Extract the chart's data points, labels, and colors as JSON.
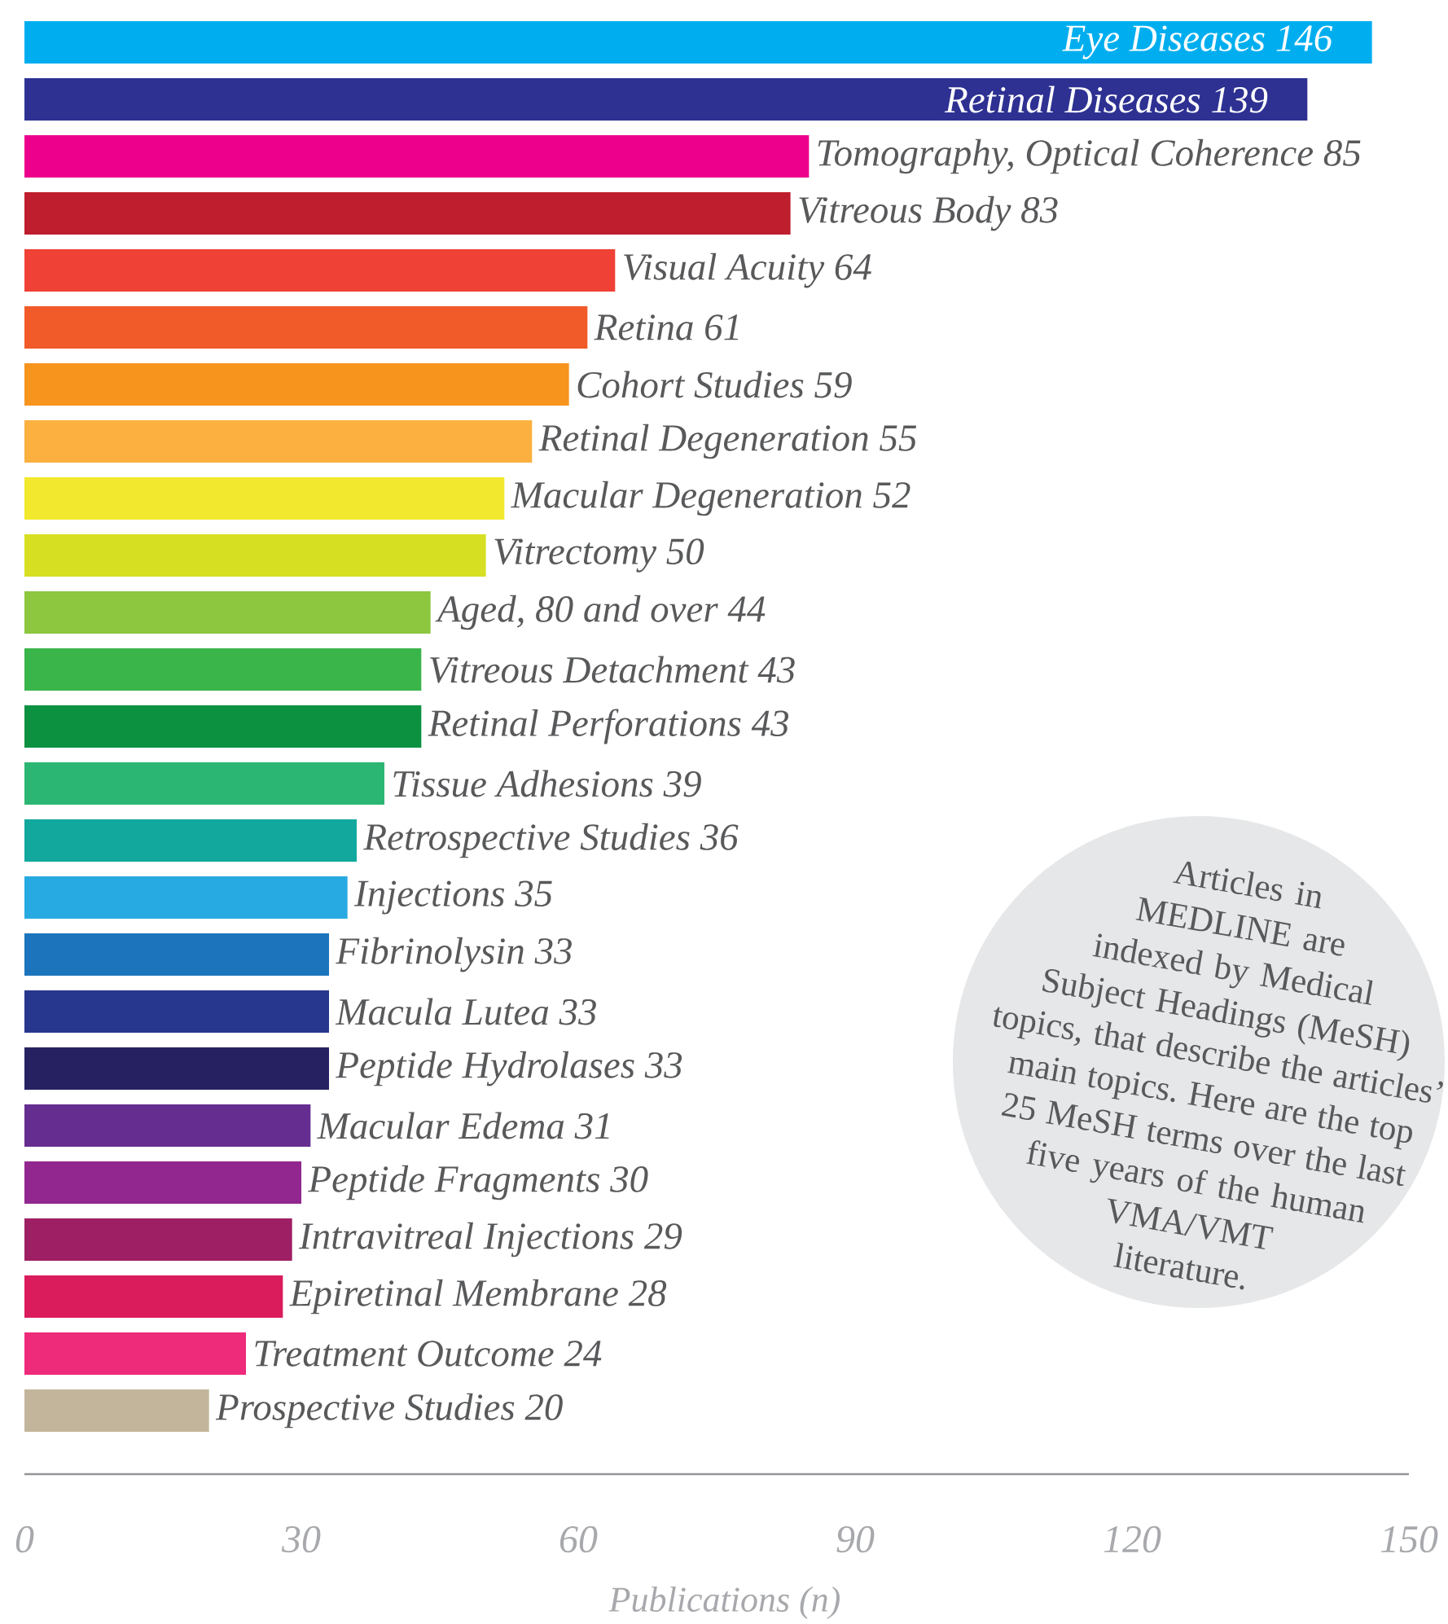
{
  "chart_data": {
    "type": "bar",
    "orientation": "horizontal",
    "xlabel": "Publications (n)",
    "categories": [
      "Eye Diseases 146",
      "Retinal Diseases 139",
      "Tomography, Optical Coherence 85",
      "Vitreous Body 83",
      "Visual Acuity 64",
      "Retina 61",
      "Cohort Studies 59",
      "Retinal Degeneration 55",
      "Macular Degeneration 52",
      "Vitrectomy 50",
      "Aged, 80 and over 44",
      "Vitreous Detachment 43",
      "Retinal Perforations 43",
      "Tissue Adhesions 39",
      "Retrospective Studies 36",
      "Injections 35",
      "Fibrinolysin 33",
      "Macula Lutea 33",
      "Peptide Hydrolases 33",
      "Macular Edema 31",
      "Peptide Fragments 30",
      "Intravitreal Injections 29",
      "Epiretinal Membrane 28",
      "Treatment Outcome 24",
      "Prospective Studies 20"
    ],
    "values": [
      146,
      139,
      85,
      83,
      64,
      61,
      59,
      55,
      52,
      50,
      44,
      43,
      43,
      39,
      36,
      35,
      33,
      33,
      33,
      31,
      30,
      29,
      28,
      24,
      20
    ],
    "colors": [
      "#00aeef",
      "#2e3192",
      "#ec008c",
      "#be1e2d",
      "#ef4136",
      "#f15a29",
      "#f7941d",
      "#fbb040",
      "#f2e92f",
      "#d7df23",
      "#8dc63f",
      "#39b54a",
      "#0c9141",
      "#2bb673",
      "#13a89e",
      "#27aae1",
      "#1c75bc",
      "#27378d",
      "#262262",
      "#662d91",
      "#92278f",
      "#9e1f63",
      "#da1c5c",
      "#ee2a7b",
      "#c2b59b"
    ],
    "xlim": [
      0,
      150
    ],
    "xticks": [
      0,
      30,
      60,
      90,
      120,
      150
    ],
    "annotations": [
      "Articles in MEDLINE are indexed by Medical Subject Headings (MeSH) topics, that describe the articles’ main topics. Here are the top 25 MeSH terms over the last five years of the human VMA/VMT literature."
    ]
  }
}
